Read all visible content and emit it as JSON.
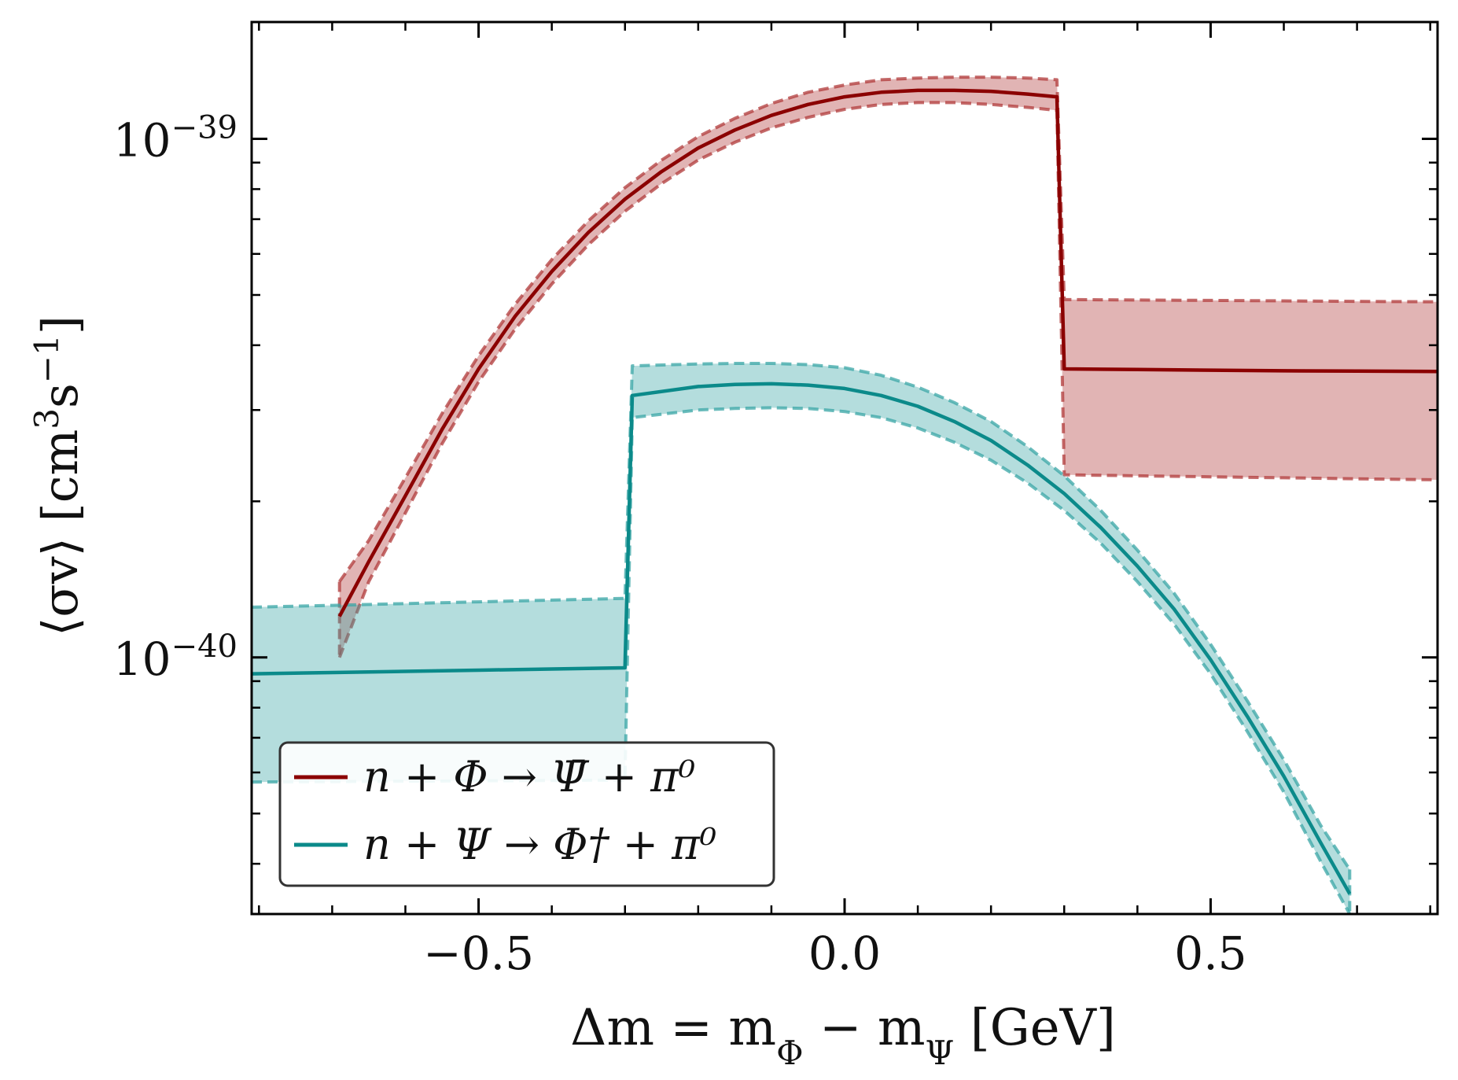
{
  "chart_data": {
    "type": "line",
    "title": "",
    "xlabel": "Δm = m_Φ − m_Ψ [GeV]",
    "xlabel_parts": {
      "lhs": "Δm = m",
      "sub1": "Φ",
      "mid": " − m",
      "sub2": "Ψ",
      "unit": " [GeV]"
    },
    "ylabel": "⟨σv⟩ [cm³s⁻¹]",
    "ylabel_parts": {
      "main": "⟨σv⟩ [cm",
      "sup1": "3",
      "mid": "s",
      "sup2": "−1",
      "end": "]"
    },
    "xlim": [
      -0.81,
      0.81
    ],
    "ylim": [
      3.2e-41,
      1.68e-39
    ],
    "yscale": "log",
    "x_ticks": [
      {
        "value": -0.5,
        "label": "−0.5"
      },
      {
        "value": 0.0,
        "label": "0.0"
      },
      {
        "value": 0.5,
        "label": "0.5"
      }
    ],
    "y_ticks": [
      {
        "value": 1e-40,
        "base": "10",
        "exp": "−40"
      },
      {
        "value": 1e-39,
        "base": "10",
        "exp": "−39"
      }
    ],
    "legend_position": "bottom-left",
    "series": [
      {
        "name": "n + Φ → Ψ̄ + π⁰",
        "legend_label": "n + Φ → Ψ̄ + π⁰",
        "color": "#8b0000",
        "band_color": "#b03a3a",
        "x": [
          -0.69,
          -0.65,
          -0.6,
          -0.55,
          -0.5,
          -0.45,
          -0.4,
          -0.35,
          -0.3,
          -0.25,
          -0.2,
          -0.15,
          -0.1,
          -0.05,
          0.0,
          0.05,
          0.1,
          0.15,
          0.2,
          0.25,
          0.29,
          0.3,
          0.4,
          0.5,
          0.6,
          0.7,
          0.81
        ],
        "y": [
          1.2e-40,
          1.53e-40,
          2.05e-40,
          2.75e-40,
          3.6e-40,
          4.55e-40,
          5.55e-40,
          6.6e-40,
          7.65e-40,
          8.65e-40,
          9.6e-40,
          1.04e-39,
          1.11e-39,
          1.165e-39,
          1.205e-39,
          1.23e-39,
          1.24e-39,
          1.24e-39,
          1.235e-39,
          1.22e-39,
          1.205e-39,
          3.6e-40,
          3.59e-40,
          3.58e-40,
          3.57e-40,
          3.565e-40,
          3.56e-40
        ],
        "y_lower": [
          1e-40,
          1.4e-40,
          1.9e-40,
          2.58e-40,
          3.4e-40,
          4.3e-40,
          5.25e-40,
          6.25e-40,
          7.25e-40,
          8.2e-40,
          9.1e-40,
          9.85e-40,
          1.05e-39,
          1.1e-39,
          1.14e-39,
          1.165e-39,
          1.175e-39,
          1.175e-39,
          1.165e-39,
          1.15e-39,
          1.135e-39,
          2.25e-40,
          2.24e-40,
          2.23e-40,
          2.22e-40,
          2.21e-40,
          2.2e-40
        ],
        "y_upper": [
          1.4e-40,
          1.68e-40,
          2.22e-40,
          2.95e-40,
          3.82e-40,
          4.8e-40,
          5.85e-40,
          6.95e-40,
          8.05e-40,
          9.1e-40,
          1.01e-39,
          1.095e-39,
          1.17e-39,
          1.23e-39,
          1.27e-39,
          1.3e-39,
          1.31e-39,
          1.315e-39,
          1.315e-39,
          1.31e-39,
          1.3e-39,
          4.9e-40,
          4.89e-40,
          4.88e-40,
          4.87e-40,
          4.86e-40,
          4.85e-40
        ]
      },
      {
        "name": "n + Ψ → Φ† + π⁰",
        "legend_label": "n + Ψ → Φ† + π⁰",
        "color": "#0b8a8a",
        "band_color": "#3aa5a5",
        "x": [
          -0.81,
          -0.7,
          -0.6,
          -0.5,
          -0.4,
          -0.3,
          -0.29,
          -0.2,
          -0.15,
          -0.1,
          -0.05,
          0.0,
          0.05,
          0.1,
          0.15,
          0.2,
          0.25,
          0.3,
          0.35,
          0.4,
          0.45,
          0.5,
          0.55,
          0.6,
          0.65,
          0.69
        ],
        "y": [
          9.3e-41,
          9.35e-41,
          9.4e-41,
          9.45e-41,
          9.5e-41,
          9.55e-41,
          3.2e-40,
          3.33e-40,
          3.36e-40,
          3.37e-40,
          3.35e-40,
          3.3e-40,
          3.2e-40,
          3.05e-40,
          2.85e-40,
          2.62e-40,
          2.35e-40,
          2.07e-40,
          1.78e-40,
          1.5e-40,
          1.24e-40,
          9.9e-41,
          7.7e-41,
          5.9e-41,
          4.4e-41,
          3.5e-41
        ],
        "y_lower": [
          5.75e-41,
          5.76e-41,
          5.77e-41,
          5.78e-41,
          5.79e-41,
          5.8e-41,
          2.9e-40,
          3e-40,
          3.02e-40,
          3.03e-40,
          3.02e-40,
          2.98e-40,
          2.9e-40,
          2.77e-40,
          2.6e-40,
          2.4e-40,
          2.17e-40,
          1.92e-40,
          1.66e-40,
          1.4e-40,
          1.16e-40,
          9.3e-41,
          7.2e-41,
          5.5e-41,
          4.05e-41,
          3.2e-41
        ],
        "y_upper": [
          1.25e-40,
          1.26e-40,
          1.27e-40,
          1.28e-40,
          1.29e-40,
          1.3e-40,
          3.65e-40,
          3.68e-40,
          3.69e-40,
          3.69e-40,
          3.67e-40,
          3.62e-40,
          3.5e-40,
          3.32e-40,
          3.1e-40,
          2.85e-40,
          2.55e-40,
          2.24e-40,
          1.92e-40,
          1.61e-40,
          1.33e-40,
          1.06e-40,
          8.25e-41,
          6.35e-41,
          4.75e-41,
          3.9e-41
        ]
      }
    ]
  }
}
